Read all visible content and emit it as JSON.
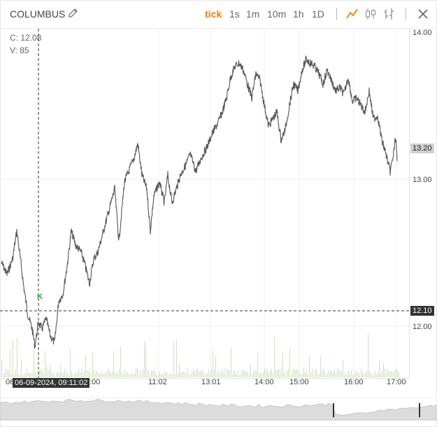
{
  "header": {
    "title": "COLUMBUS",
    "timeframes": [
      "tick",
      "1s",
      "1m",
      "10m",
      "1h",
      "1D"
    ],
    "active_timeframe": "tick"
  },
  "readout": {
    "close": "C: 12.08",
    "volume": "V: 85"
  },
  "price_axis": {
    "ticks": [
      "14.00",
      "13.00",
      "12.00"
    ],
    "last_price": "13.20",
    "crosshair_price": "12.10"
  },
  "time_axis": {
    "ticks": [
      "11:02",
      "13:01",
      "14:00",
      "15:00",
      "16:00",
      "17:00"
    ],
    "partial_left": "06",
    "partial_hidden": ":00",
    "crosshair_time": "06-09-2024, 09:11:02"
  },
  "marker": {
    "label": "K",
    "color": "#2aa52a"
  },
  "colors": {
    "accent": "#f07d00",
    "line": "#555555",
    "volume": "#cfe0c0"
  },
  "icons": [
    "pencil-icon",
    "line-chart-icon",
    "candlestick-icon",
    "ohlc-bars-icon",
    "close-icon"
  ]
}
